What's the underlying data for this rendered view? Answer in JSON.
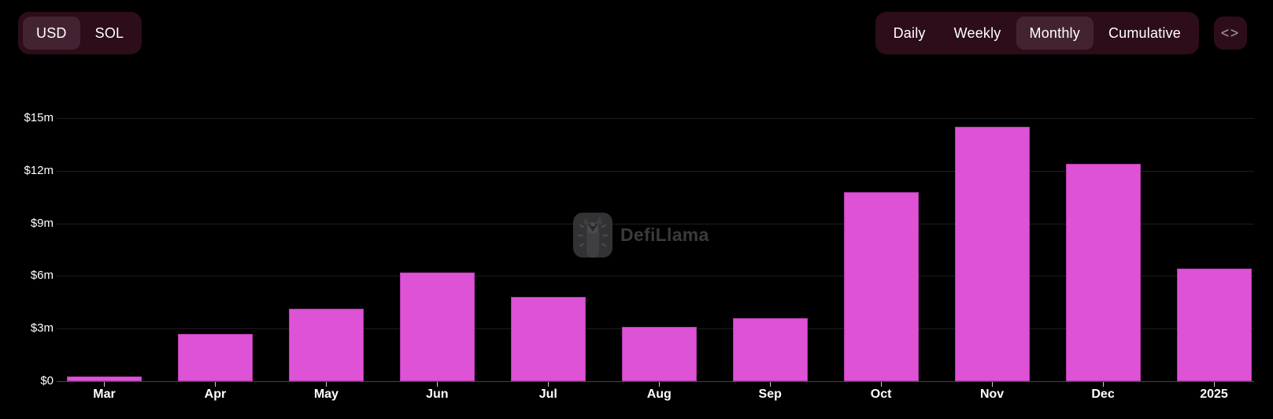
{
  "toolbar": {
    "currency": {
      "options": [
        "USD",
        "SOL"
      ],
      "selected": "USD"
    },
    "interval": {
      "options": [
        "Daily",
        "Weekly",
        "Monthly",
        "Cumulative"
      ],
      "selected": "Monthly"
    },
    "embed_icon": "<>"
  },
  "watermark": {
    "text": "DefiLlama"
  },
  "colors": {
    "background": "#000000",
    "bar": "#de52d6",
    "bar_border": "#b53cae",
    "toolbar_bg": "#2d0d1a",
    "toolbar_selected_bg": "#432331",
    "grid": "#1d1d20",
    "axis": "#454548",
    "text": "#ffffff",
    "watermark": "#3b3b3d"
  },
  "chart_data": {
    "type": "bar",
    "title": "",
    "xlabel": "",
    "ylabel": "",
    "unit": "USD (millions)",
    "categories": [
      "Mar",
      "Apr",
      "May",
      "Jun",
      "Jul",
      "Aug",
      "Sep",
      "Oct",
      "Nov",
      "Dec",
      "2025"
    ],
    "values": [
      0.27,
      2.7,
      4.15,
      6.2,
      4.8,
      3.1,
      3.6,
      10.8,
      14.5,
      12.4,
      6.4
    ],
    "value_labels": [
      "$0.3m",
      "$2.7m",
      "$4.2m",
      "$6.2m",
      "$4.8m",
      "$3.1m",
      "$3.6m",
      "$10.8m",
      "$14.5m",
      "$12.4m",
      "$6.4m"
    ],
    "ylim": [
      0,
      15
    ],
    "yticks": {
      "values": [
        0,
        3,
        6,
        9,
        12,
        15
      ],
      "labels": [
        "$0",
        "$3m",
        "$6m",
        "$9m",
        "$12m",
        "$15m"
      ]
    },
    "grid": "horizontal-only",
    "legend": "none",
    "bar_color": "#de52d6"
  }
}
